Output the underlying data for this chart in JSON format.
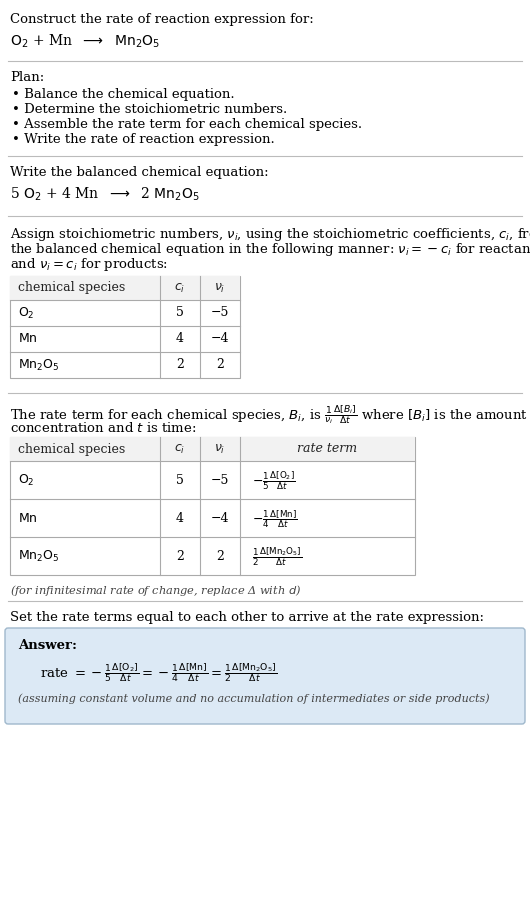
{
  "bg_color": "#ffffff",
  "text_color": "#000000",
  "title_line1": "Construct the rate of reaction expression for:",
  "plan_header": "Plan:",
  "plan_items": [
    "• Balance the chemical equation.",
    "• Determine the stoichiometric numbers.",
    "• Assemble the rate term for each chemical species.",
    "• Write the rate of reaction expression."
  ],
  "balanced_header": "Write the balanced chemical equation:",
  "assign_para_lines": [
    "Assign stoichiometric numbers, $\\nu_i$, using the stoichiometric coefficients, $c_i$, from",
    "the balanced chemical equation in the following manner: $\\nu_i = -c_i$ for reactants",
    "and $\\nu_i = c_i$ for products:"
  ],
  "table1_rows": [
    [
      "$\\mathrm{O_2}$",
      "5",
      "−5"
    ],
    [
      "$\\mathrm{Mn}$",
      "4",
      "−4"
    ],
    [
      "$\\mathrm{Mn_2O_5}$",
      "2",
      "2"
    ]
  ],
  "rate_para_line1": "The rate term for each chemical species, $B_i$, is $\\frac{1}{\\nu_i}\\frac{\\Delta[B_i]}{\\Delta t}$ where $[B_i]$ is the amount",
  "rate_para_line2": "concentration and $t$ is time:",
  "table2_rows": [
    [
      "$\\mathrm{O_2}$",
      "5",
      "−5"
    ],
    [
      "$\\mathrm{Mn}$",
      "4",
      "−4"
    ],
    [
      "$\\mathrm{Mn_2O_5}$",
      "2",
      "2"
    ]
  ],
  "rate_terms": [
    "$-\\frac{1}{5}\\frac{\\Delta[\\mathrm{O_2}]}{\\Delta t}$",
    "$-\\frac{1}{4}\\frac{\\Delta[\\mathrm{Mn}]}{\\Delta t}$",
    "$\\frac{1}{2}\\frac{\\Delta[\\mathrm{Mn_2O_5}]}{\\Delta t}$"
  ],
  "infinitesimal_note": "(for infinitesimal rate of change, replace Δ with $d$)",
  "set_rate_text": "Set the rate terms equal to each other to arrive at the rate expression:",
  "answer_bg": "#dce9f5",
  "answer_border": "#a0b8cc",
  "answer_label": "Answer:",
  "answer_rate": "rate $= -\\frac{1}{5}\\frac{\\Delta[\\mathrm{O_2}]}{\\Delta t} = -\\frac{1}{4}\\frac{\\Delta[\\mathrm{Mn}]}{\\Delta t} = \\frac{1}{2}\\frac{\\Delta[\\mathrm{Mn_2O_5}]}{\\Delta t}$",
  "answer_note": "(assuming constant volume and no accumulation of intermediates or side products)",
  "hline_color": "#bbbbbb",
  "table_border_color": "#aaaaaa",
  "table_header_bg": "#f2f2f2"
}
